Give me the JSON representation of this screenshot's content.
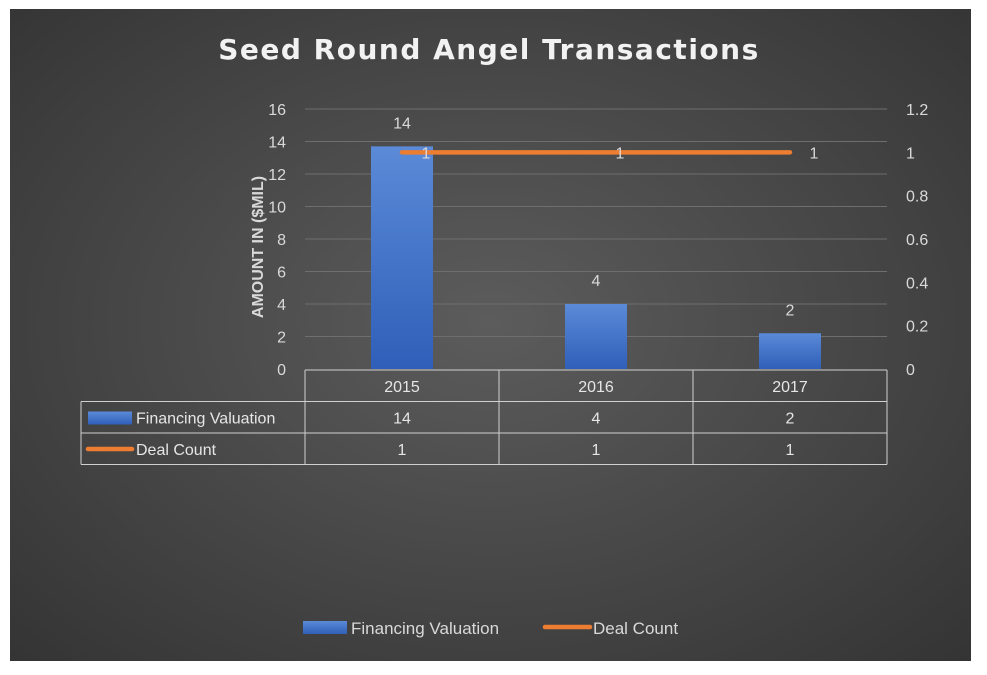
{
  "chart_data": {
    "type": "bar",
    "title": "Seed Round Angel Transactions",
    "ylabel": "AMOUNT IN  ($MIL)",
    "categories": [
      "2015",
      "2016",
      "2017"
    ],
    "ylim": [
      0,
      16
    ],
    "y_ticks": [
      "0",
      "2",
      "4",
      "6",
      "8",
      "10",
      "12",
      "14",
      "16"
    ],
    "y2lim": [
      0,
      1.2
    ],
    "y2_ticks": [
      "0",
      "0.2",
      "0.4",
      "0.6",
      "0.8",
      "1",
      "1.2"
    ],
    "grid": true,
    "legend": "bottom",
    "data_table": true,
    "series": [
      {
        "name": "Financing Valuation",
        "type": "bar",
        "axis": "primary",
        "values": [
          13.7,
          4.0,
          2.2
        ],
        "labels": [
          "14",
          "4",
          "2"
        ],
        "color": "#3f72cc"
      },
      {
        "name": "Deal Count",
        "type": "line",
        "axis": "secondary",
        "values": [
          1,
          1,
          1
        ],
        "labels": [
          "1",
          "1",
          "1"
        ],
        "color": "#ed7d31"
      }
    ]
  }
}
